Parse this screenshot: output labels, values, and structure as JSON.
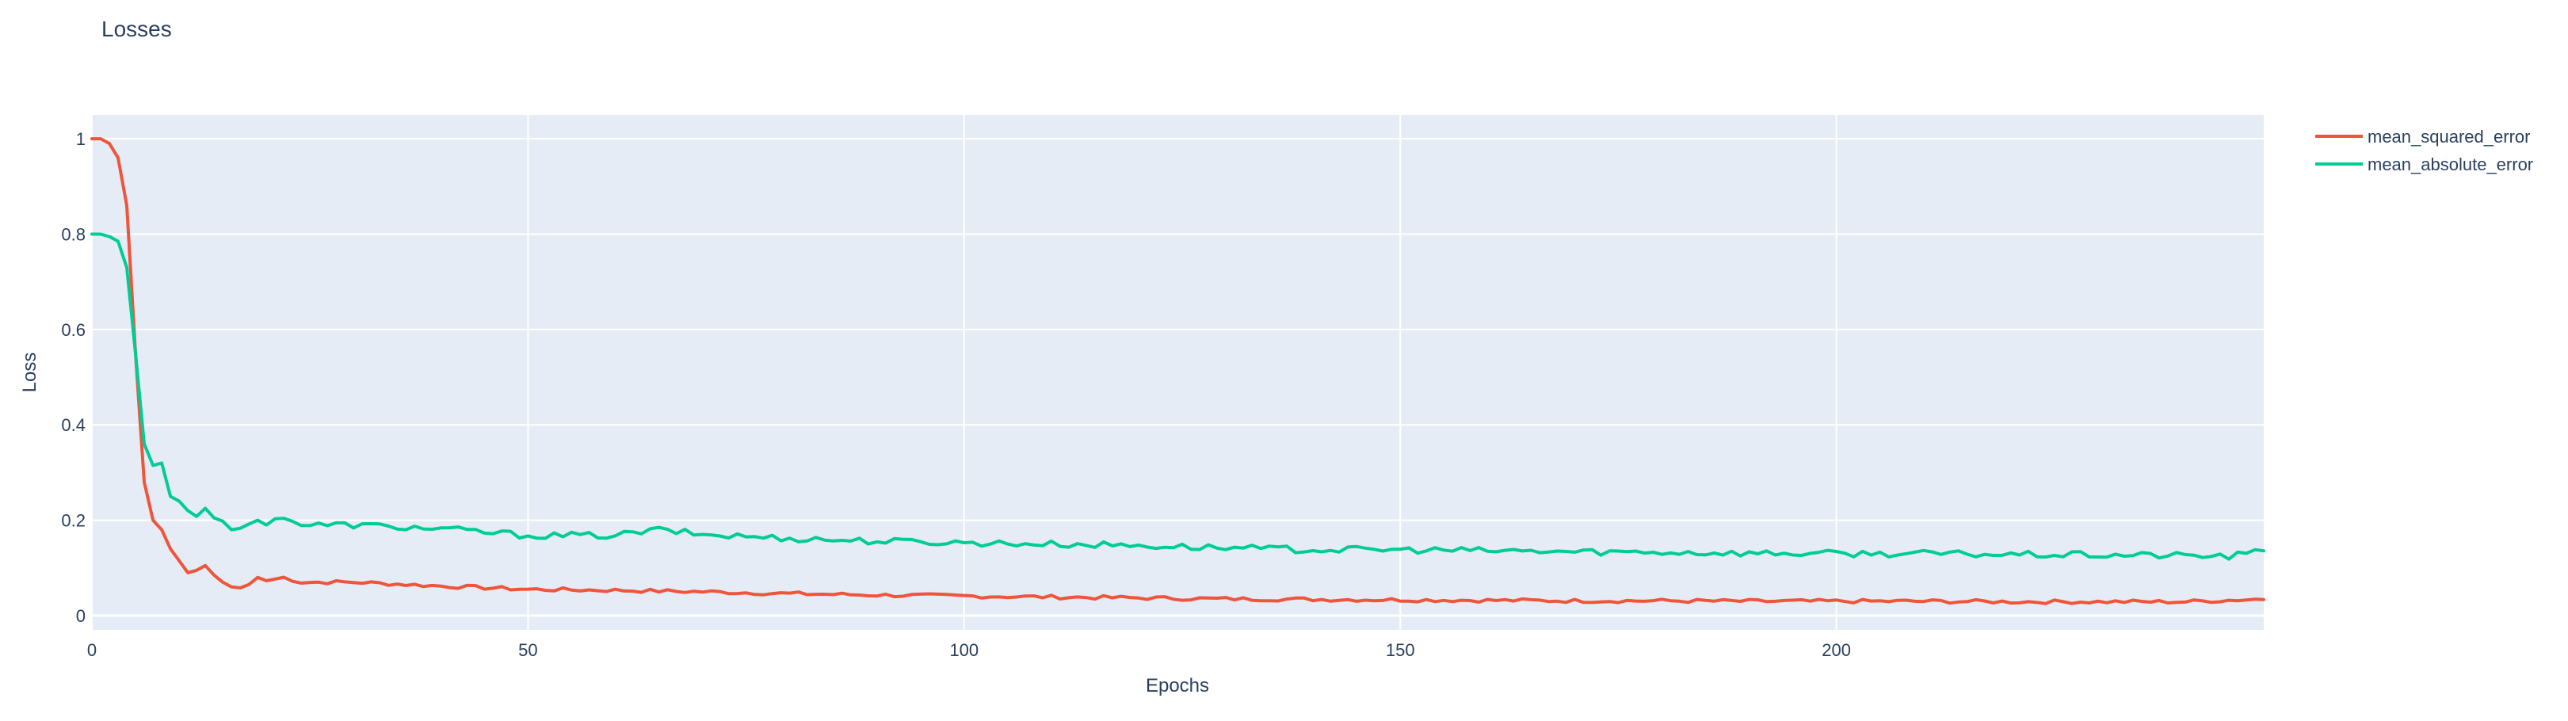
{
  "chart_data": {
    "type": "line",
    "title": "Losses",
    "xlabel": "Epochs",
    "ylabel": "Loss",
    "xlim": [
      0,
      249
    ],
    "ylim": [
      -0.03,
      1.05
    ],
    "x_ticks": [
      0,
      50,
      100,
      150,
      200
    ],
    "y_ticks": [
      0,
      0.2,
      0.4,
      0.6,
      0.8,
      1
    ],
    "y_tick_labels": [
      "0",
      "0.2",
      "0.4",
      "0.6",
      "0.8",
      "1"
    ],
    "grid": true,
    "legend_position": "right-top",
    "colors": {
      "plot_bg": "#e5ecf6",
      "grid": "#ffffff",
      "text": "#2a3f5f"
    },
    "series": [
      {
        "name": "mean_squared_error",
        "color": "#ef553b",
        "anchors": [
          [
            0,
            1.0
          ],
          [
            1,
            1.0
          ],
          [
            2,
            0.99
          ],
          [
            3,
            0.96
          ],
          [
            4,
            0.86
          ],
          [
            5,
            0.55
          ],
          [
            6,
            0.28
          ],
          [
            7,
            0.2
          ],
          [
            8,
            0.18
          ],
          [
            9,
            0.14
          ],
          [
            10,
            0.115
          ],
          [
            11,
            0.09
          ],
          [
            12,
            0.095
          ],
          [
            13,
            0.105
          ],
          [
            14,
            0.085
          ],
          [
            15,
            0.07
          ],
          [
            16,
            0.06
          ],
          [
            17,
            0.058
          ],
          [
            18,
            0.065
          ],
          [
            19,
            0.08
          ],
          [
            20,
            0.073
          ],
          [
            22,
            0.08
          ],
          [
            24,
            0.07
          ],
          [
            30,
            0.07
          ],
          [
            40,
            0.062
          ],
          [
            50,
            0.055
          ],
          [
            60,
            0.053
          ],
          [
            70,
            0.05
          ],
          [
            80,
            0.046
          ],
          [
            90,
            0.043
          ],
          [
            100,
            0.041
          ],
          [
            110,
            0.039
          ],
          [
            120,
            0.037
          ],
          [
            130,
            0.035
          ],
          [
            140,
            0.034
          ],
          [
            150,
            0.033
          ],
          [
            160,
            0.032
          ],
          [
            170,
            0.031
          ],
          [
            180,
            0.031
          ],
          [
            190,
            0.03
          ],
          [
            200,
            0.03
          ],
          [
            210,
            0.03
          ],
          [
            220,
            0.029
          ],
          [
            230,
            0.029
          ],
          [
            240,
            0.029
          ],
          [
            249,
            0.035
          ]
        ],
        "noise": 0.004
      },
      {
        "name": "mean_absolute_error",
        "color": "#00cc96",
        "anchors": [
          [
            0,
            0.8
          ],
          [
            1,
            0.8
          ],
          [
            2,
            0.795
          ],
          [
            3,
            0.785
          ],
          [
            4,
            0.73
          ],
          [
            5,
            0.55
          ],
          [
            6,
            0.36
          ],
          [
            7,
            0.315
          ],
          [
            8,
            0.32
          ],
          [
            9,
            0.25
          ],
          [
            10,
            0.24
          ],
          [
            11,
            0.22
          ],
          [
            12,
            0.208
          ],
          [
            13,
            0.225
          ],
          [
            14,
            0.205
          ],
          [
            15,
            0.198
          ],
          [
            16,
            0.18
          ],
          [
            17,
            0.183
          ],
          [
            18,
            0.192
          ],
          [
            19,
            0.2
          ],
          [
            20,
            0.19
          ],
          [
            22,
            0.21
          ],
          [
            24,
            0.19
          ],
          [
            30,
            0.19
          ],
          [
            40,
            0.182
          ],
          [
            50,
            0.168
          ],
          [
            60,
            0.168
          ],
          [
            65,
            0.18
          ],
          [
            70,
            0.17
          ],
          [
            80,
            0.162
          ],
          [
            90,
            0.156
          ],
          [
            100,
            0.153
          ],
          [
            110,
            0.15
          ],
          [
            120,
            0.147
          ],
          [
            130,
            0.142
          ],
          [
            140,
            0.138
          ],
          [
            150,
            0.138
          ],
          [
            160,
            0.136
          ],
          [
            170,
            0.134
          ],
          [
            180,
            0.133
          ],
          [
            190,
            0.131
          ],
          [
            200,
            0.13
          ],
          [
            210,
            0.13
          ],
          [
            220,
            0.128
          ],
          [
            230,
            0.127
          ],
          [
            240,
            0.126
          ],
          [
            245,
            0.124
          ],
          [
            249,
            0.135
          ]
        ],
        "noise": 0.007
      }
    ]
  }
}
